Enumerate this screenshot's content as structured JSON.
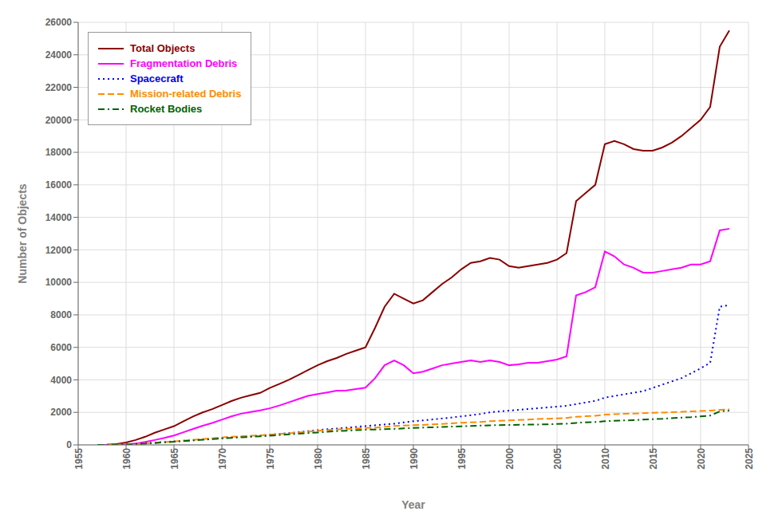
{
  "chart_data": {
    "type": "line",
    "xlabel": "Year",
    "ylabel": "Number of Objects",
    "x": [
      1957,
      1958,
      1959,
      1960,
      1961,
      1962,
      1963,
      1964,
      1965,
      1966,
      1967,
      1968,
      1969,
      1970,
      1971,
      1972,
      1973,
      1974,
      1975,
      1976,
      1977,
      1978,
      1979,
      1980,
      1981,
      1982,
      1983,
      1984,
      1985,
      1986,
      1987,
      1988,
      1989,
      1990,
      1991,
      1992,
      1993,
      1994,
      1995,
      1996,
      1997,
      1998,
      1999,
      2000,
      2001,
      2002,
      2003,
      2004,
      2005,
      2006,
      2007,
      2008,
      2009,
      2010,
      2011,
      2012,
      2013,
      2014,
      2015,
      2016,
      2017,
      2018,
      2019,
      2020,
      2021,
      2022,
      2023
    ],
    "series": [
      {
        "name": "Total Objects",
        "color": "#8B0000",
        "line_style": "solid",
        "values": [
          0,
          10,
          50,
          150,
          300,
          500,
          750,
          950,
          1150,
          1450,
          1750,
          2000,
          2200,
          2450,
          2700,
          2900,
          3050,
          3200,
          3500,
          3750,
          4000,
          4300,
          4600,
          4900,
          5150,
          5350,
          5600,
          5800,
          6000,
          7200,
          8500,
          9300,
          9000,
          8700,
          8900,
          9400,
          9900,
          10300,
          10800,
          11200,
          11300,
          11500,
          11400,
          11000,
          10900,
          11000,
          11100,
          11200,
          11400,
          11800,
          15000,
          15500,
          16000,
          18500,
          18700,
          18500,
          18200,
          18100,
          18100,
          18300,
          18600,
          19000,
          19500,
          20000,
          20800,
          24500,
          25500
        ]
      },
      {
        "name": "Fragmentation Debris",
        "color": "#FF00FF",
        "line_style": "solid",
        "values": [
          0,
          0,
          5,
          30,
          80,
          180,
          300,
          430,
          580,
          780,
          980,
          1180,
          1350,
          1550,
          1750,
          1920,
          2020,
          2120,
          2250,
          2420,
          2620,
          2820,
          3020,
          3130,
          3230,
          3330,
          3350,
          3430,
          3520,
          4100,
          4900,
          5200,
          4900,
          4400,
          4500,
          4700,
          4900,
          5000,
          5100,
          5200,
          5100,
          5200,
          5100,
          4900,
          4950,
          5050,
          5050,
          5150,
          5250,
          5450,
          9200,
          9400,
          9700,
          11900,
          11600,
          11100,
          10900,
          10600,
          10600,
          10700,
          10800,
          10900,
          11100,
          11100,
          11300,
          13200,
          13300
        ]
      },
      {
        "name": "Spacecraft",
        "color": "#0000FF",
        "line_style": "dotted",
        "values": [
          0,
          5,
          15,
          35,
          65,
          105,
          145,
          180,
          215,
          255,
          295,
          335,
          375,
          415,
          455,
          495,
          535,
          575,
          625,
          675,
          725,
          785,
          845,
          905,
          965,
          1005,
          1055,
          1105,
          1155,
          1205,
          1255,
          1305,
          1385,
          1455,
          1505,
          1565,
          1625,
          1685,
          1755,
          1825,
          1905,
          2005,
          2055,
          2105,
          2155,
          2205,
          2255,
          2305,
          2355,
          2405,
          2505,
          2605,
          2705,
          2905,
          3005,
          3105,
          3205,
          3305,
          3505,
          3705,
          3905,
          4105,
          4405,
          4705,
          5050,
          8500,
          8600
        ]
      },
      {
        "name": "Mission-related Debris",
        "color": "#FF8C00",
        "line_style": "dashed",
        "values": [
          0,
          3,
          10,
          28,
          55,
          90,
          130,
          170,
          210,
          260,
          310,
          360,
          410,
          460,
          500,
          530,
          560,
          590,
          630,
          670,
          710,
          760,
          810,
          860,
          910,
          950,
          980,
          1010,
          1040,
          1060,
          1110,
          1160,
          1190,
          1210,
          1230,
          1260,
          1290,
          1320,
          1360,
          1390,
          1410,
          1460,
          1490,
          1510,
          1530,
          1560,
          1590,
          1610,
          1630,
          1660,
          1730,
          1760,
          1790,
          1860,
          1890,
          1910,
          1930,
          1950,
          1970,
          1990,
          2010,
          2030,
          2060,
          2090,
          2110,
          2160,
          2190
        ]
      },
      {
        "name": "Rocket Bodies",
        "color": "#006400",
        "line_style": "dashdot",
        "values": [
          0,
          2,
          8,
          22,
          48,
          78,
          115,
          155,
          195,
          235,
          275,
          315,
          355,
          395,
          435,
          465,
          495,
          525,
          565,
          605,
          645,
          685,
          725,
          765,
          805,
          845,
          875,
          905,
          935,
          945,
          965,
          985,
          1015,
          1045,
          1065,
          1085,
          1105,
          1125,
          1145,
          1165,
          1185,
          1205,
          1215,
          1225,
          1235,
          1245,
          1255,
          1265,
          1285,
          1305,
          1355,
          1385,
          1405,
          1455,
          1485,
          1505,
          1525,
          1555,
          1585,
          1605,
          1645,
          1675,
          1705,
          1755,
          1805,
          2060,
          2110
        ]
      }
    ],
    "xlim": [
      1955,
      2025
    ],
    "xticks": [
      1955,
      1960,
      1965,
      1970,
      1975,
      1980,
      1985,
      1990,
      1995,
      2000,
      2005,
      2010,
      2015,
      2020,
      2025
    ],
    "ylim": [
      0,
      26000
    ],
    "yticks": [
      0,
      2000,
      4000,
      6000,
      8000,
      10000,
      12000,
      14000,
      16000,
      18000,
      20000,
      22000,
      24000,
      26000
    ],
    "grid": true,
    "legend": "upper left"
  }
}
